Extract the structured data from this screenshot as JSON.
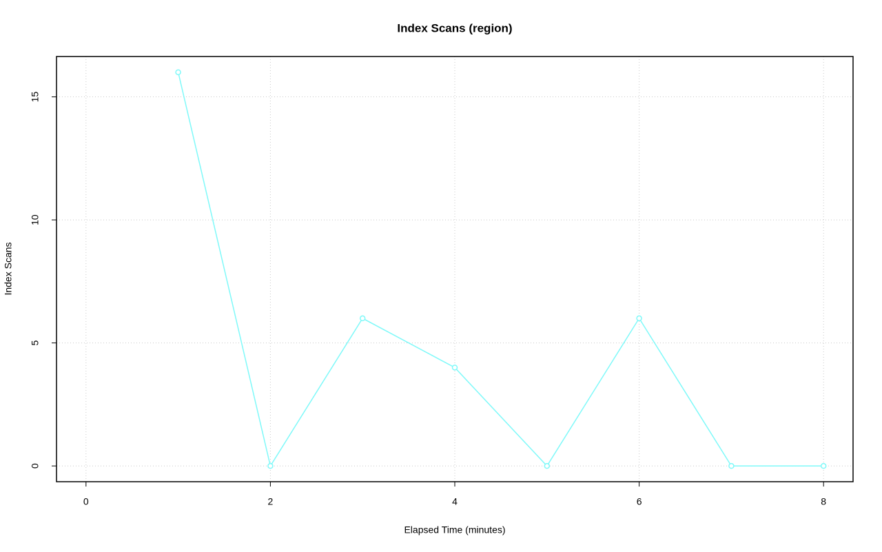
{
  "chart_data": {
    "type": "line",
    "title": "Index Scans (region)",
    "x_label": "Elapsed Time (minutes)",
    "y_label": "Index Scans",
    "series": [
      {
        "name": "region",
        "color": "#7ff9f9",
        "x": [
          1,
          2,
          3,
          4,
          5,
          6,
          7,
          8
        ],
        "values": [
          16,
          0,
          6,
          4,
          0,
          6,
          0,
          0
        ]
      }
    ],
    "xlim": [
      -0.32,
      8.32
    ],
    "xticks": [
      0,
      2,
      4,
      6,
      8
    ],
    "ylim": [
      -0.64,
      16.64
    ],
    "yticks": [
      0,
      5,
      10,
      15
    ],
    "grid": true
  }
}
